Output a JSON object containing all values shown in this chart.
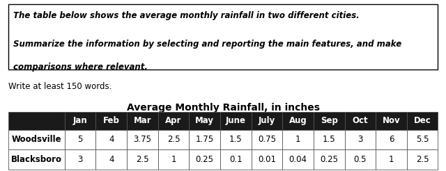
{
  "prompt_line1": "The table below shows the average monthly rainfall in two different cities.",
  "prompt_line2": "Summarize the information by selecting and reporting the main features, and make",
  "prompt_line3": "comparisons where relevant.",
  "write_prompt": "Write at least 150 words.",
  "table_title": "Average Monthly Rainfall, in inches",
  "months": [
    "Jan",
    "Feb",
    "Mar",
    "Apr",
    "May",
    "June",
    "July",
    "Aug",
    "Sep",
    "Oct",
    "Nov",
    "Dec"
  ],
  "rows": [
    {
      "label": "Woodsville",
      "values": [
        "5",
        "4",
        "3.75",
        "2.5",
        "1.75",
        "1.5",
        "0.75",
        "1",
        "1.5",
        "3",
        "6",
        "5.5"
      ]
    },
    {
      "label": "Blacksboro",
      "values": [
        "3",
        "4",
        "2.5",
        "1",
        "0.25",
        "0.1",
        "0.01",
        "0.04",
        "0.25",
        "0.5",
        "1",
        "2.5"
      ]
    }
  ],
  "header_bg": "#1a1a1a",
  "header_fg": "#ffffff",
  "row_bg": "#ffffff",
  "row_fg": "#000000",
  "border_color": "#555555",
  "prompt_box_border": "#000000",
  "prompt_font_size": 8.5,
  "write_font_size": 8.5,
  "title_font_size": 10,
  "table_font_size": 8.5,
  "fig_width": 6.4,
  "fig_height": 2.46
}
